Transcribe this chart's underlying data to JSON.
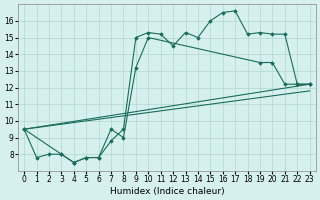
{
  "xlabel": "Humidex (Indice chaleur)",
  "background_color": "#d6f0f0",
  "grid_color": "#b0d8cc",
  "line_color": "#1a6b5a",
  "xlim": [
    -0.5,
    23.5
  ],
  "ylim": [
    7,
    17
  ],
  "yticks": [
    8,
    9,
    10,
    11,
    12,
    13,
    14,
    15,
    16
  ],
  "xtick_labels": [
    "0",
    "1",
    "2",
    "3",
    "4",
    "5",
    "6",
    "7",
    "8",
    "9",
    "10",
    "11",
    "12",
    "13",
    "14",
    "15",
    "16",
    "17",
    "18",
    "19",
    "20",
    "21",
    "22",
    "23"
  ],
  "xtick_positions": [
    0,
    1,
    2,
    3,
    4,
    5,
    6,
    7,
    8,
    9,
    10,
    11,
    12,
    13,
    14,
    15,
    16,
    17,
    18,
    19,
    20,
    21,
    22,
    23
  ],
  "series": [
    {
      "x": [
        0,
        1,
        2,
        3,
        4,
        5,
        6,
        7,
        8,
        9,
        10,
        11,
        12,
        13,
        14,
        15,
        16,
        17,
        18,
        19,
        20,
        21,
        22,
        23
      ],
      "y": [
        9.5,
        7.8,
        8.0,
        8.0,
        7.5,
        7.8,
        7.8,
        8.8,
        9.5,
        15.0,
        15.3,
        15.2,
        14.5,
        15.3,
        15.0,
        16.0,
        16.5,
        16.6,
        15.2,
        15.3,
        15.2,
        15.2,
        12.2,
        12.2
      ],
      "marker": true
    },
    {
      "x": [
        0,
        3,
        4,
        5,
        6,
        7,
        8,
        9,
        10,
        19,
        20,
        21,
        22,
        23
      ],
      "y": [
        9.5,
        8.0,
        7.5,
        7.8,
        7.8,
        9.5,
        9.0,
        13.2,
        15.0,
        13.5,
        13.5,
        12.2,
        12.2,
        12.2
      ],
      "marker": true
    },
    {
      "x": [
        0,
        23
      ],
      "y": [
        9.5,
        12.2
      ],
      "marker": false
    },
    {
      "x": [
        0,
        23
      ],
      "y": [
        9.5,
        11.8
      ],
      "marker": false
    }
  ]
}
